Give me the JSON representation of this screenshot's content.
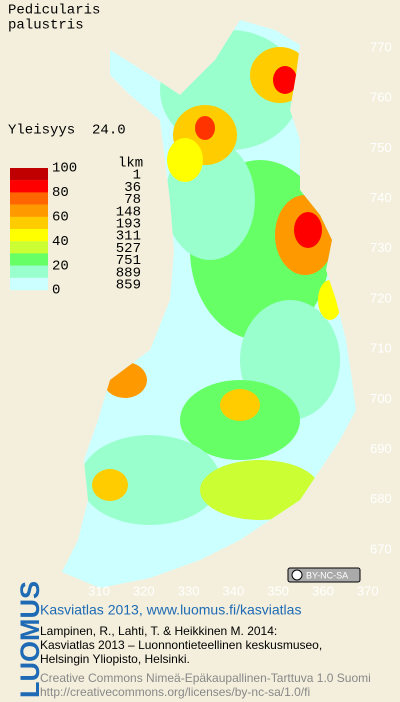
{
  "title": [
    "Pedicularis",
    "palustris"
  ],
  "frequency": "Yleisyys  24.0",
  "legend": {
    "header": "lkm",
    "scale": [
      100,
      80,
      60,
      40,
      20,
      0
    ],
    "counts": [
      1,
      36,
      78,
      148,
      193,
      311,
      527,
      751,
      889,
      859
    ]
  },
  "grid": {
    "northing": [
      770,
      760,
      750,
      740,
      730,
      720,
      710,
      700,
      690,
      680,
      670
    ],
    "easting": [
      310,
      320,
      330,
      340,
      350,
      360,
      370
    ]
  },
  "license_badge": "BY-NC-SA",
  "logo": "LUOMUS",
  "footer": {
    "heading": "Kasviatlas 2013, www.luomus.fi/kasviatlas",
    "citation": [
      "Lampinen, R., Lahti, T. & Heikkinen M. 2014:",
      "Kasviatlas 2013 – Luonnontieteellinen keskusmuseo,",
      "Helsingin Yliopisto, Helsinki."
    ],
    "license": [
      "Creative Commons Nimeä-Epäkaupallinen-Tarttuva 1.0 Suomi",
      "http://creativecommons.org/licenses/by-nc-sa/1.0/fi"
    ]
  }
}
